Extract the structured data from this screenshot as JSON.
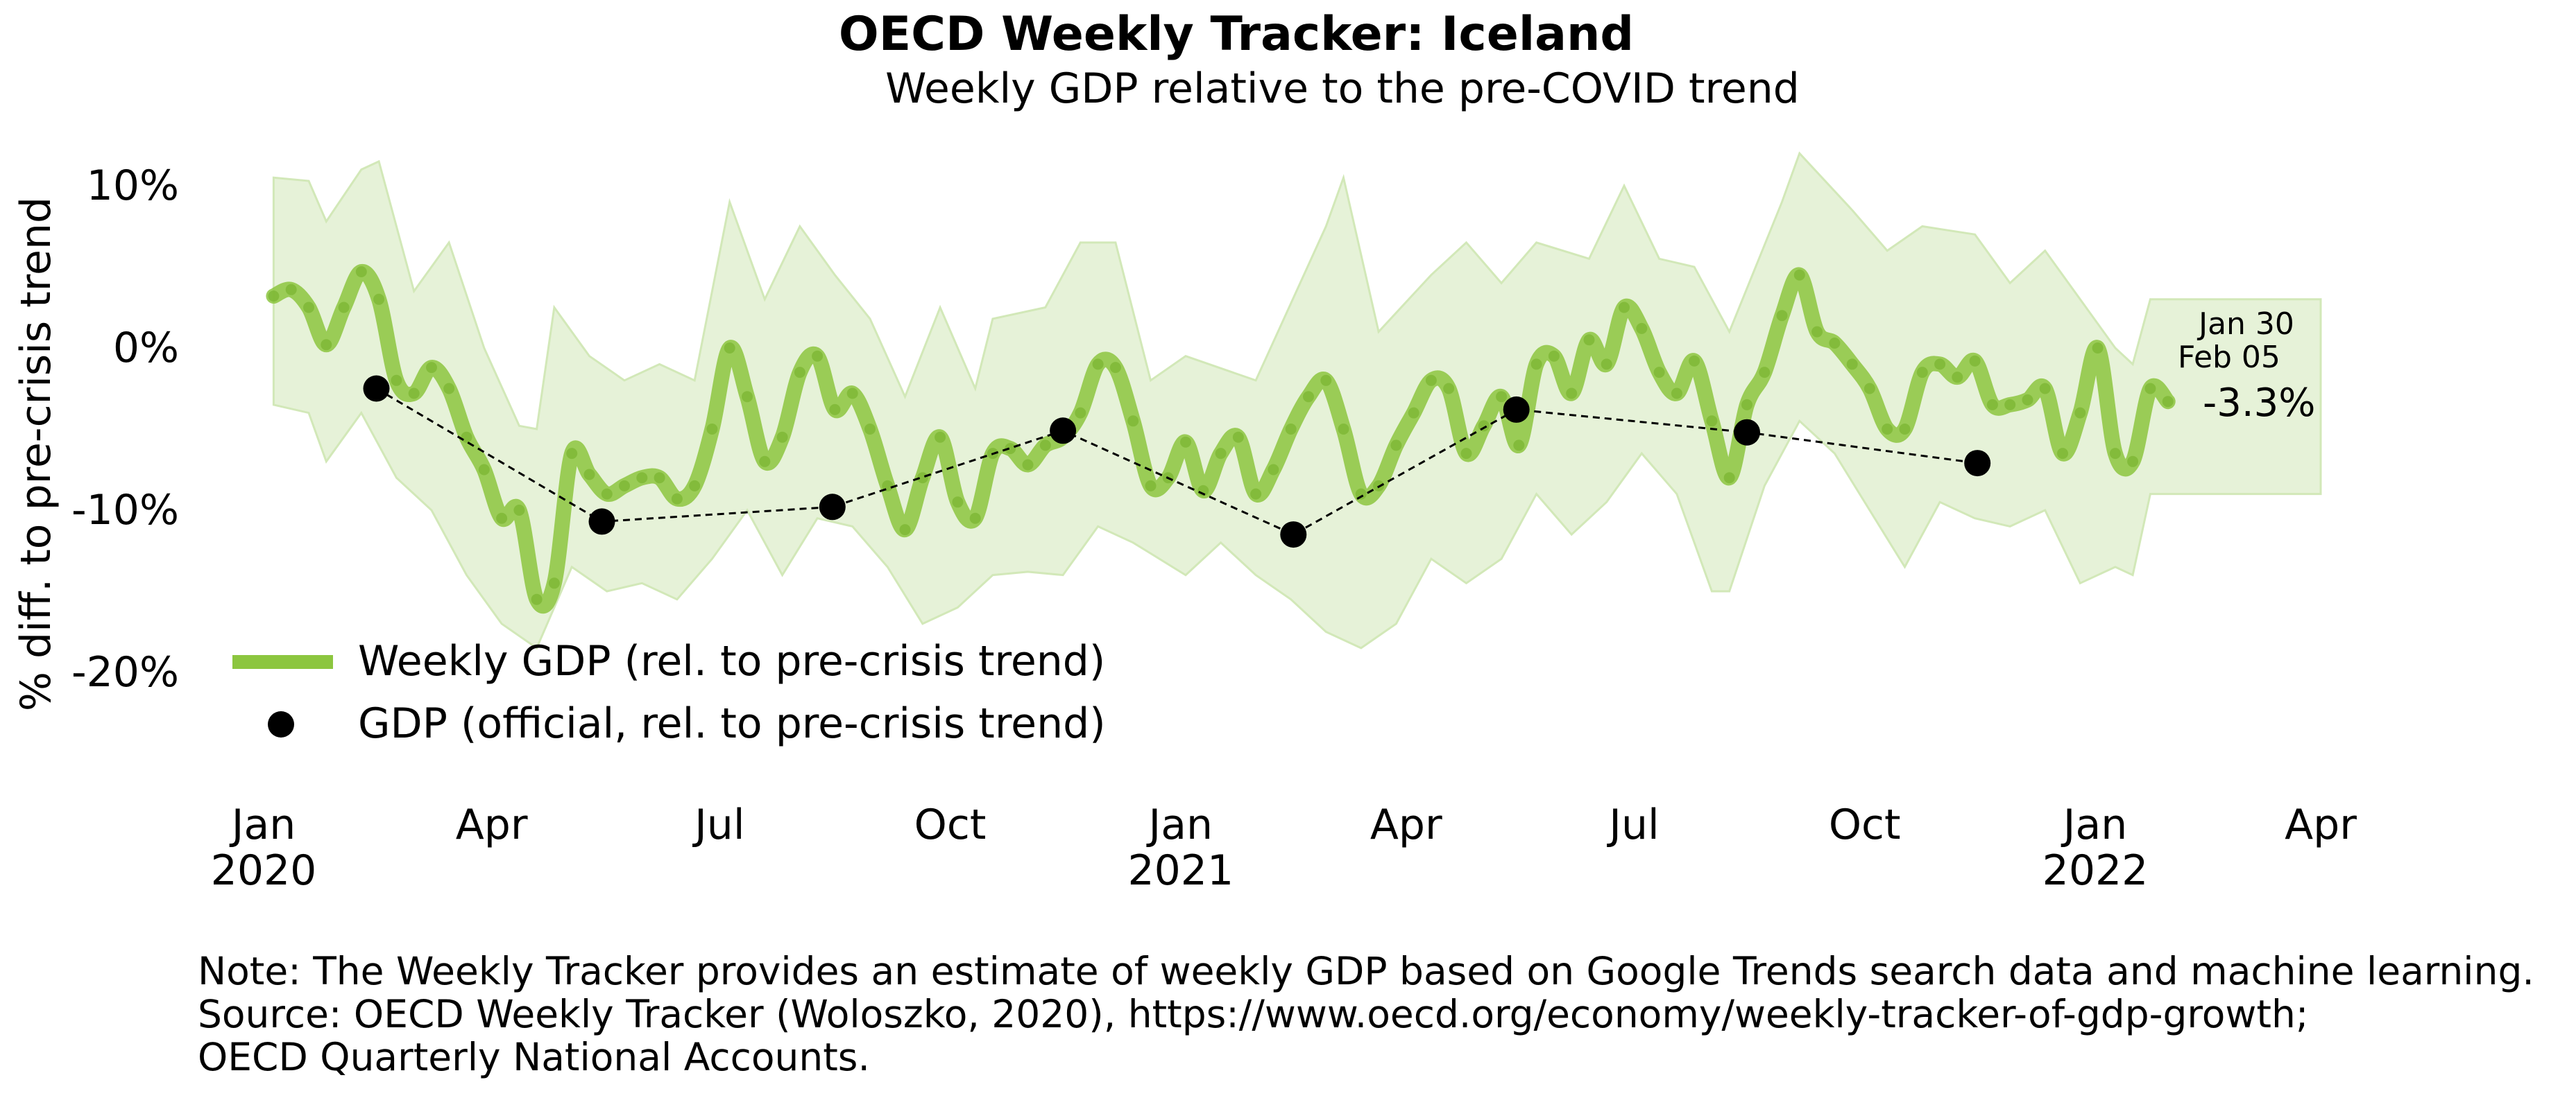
{
  "chart_data": {
    "type": "line",
    "title": "OECD Weekly Tracker: Iceland",
    "subtitle": "Weekly GDP relative to the pre-COVID trend",
    "ylabel": "% diff. to pre-crisis trend",
    "xlabel": "",
    "ylim": [
      -20,
      10
    ],
    "yticks": [
      10,
      0,
      -10,
      -20
    ],
    "ytick_labels": [
      "10%",
      "0%",
      "-10%",
      "-20%"
    ],
    "xticks": [
      {
        "date": "2020-01-01",
        "label": "Jan",
        "year": "2020"
      },
      {
        "date": "2020-04-01",
        "label": "Apr",
        "year": ""
      },
      {
        "date": "2020-07-01",
        "label": "Jul",
        "year": ""
      },
      {
        "date": "2020-10-01",
        "label": "Oct",
        "year": ""
      },
      {
        "date": "2021-01-01",
        "label": "Jan",
        "year": "2021"
      },
      {
        "date": "2021-04-01",
        "label": "Apr",
        "year": ""
      },
      {
        "date": "2021-07-01",
        "label": "Jul",
        "year": ""
      },
      {
        "date": "2021-10-01",
        "label": "Oct",
        "year": ""
      },
      {
        "date": "2022-01-01",
        "label": "Jan",
        "year": "2022"
      },
      {
        "date": "2022-04-01",
        "label": "Apr",
        "year": ""
      }
    ],
    "grid": false,
    "legend_position": "bottom-left",
    "colors": {
      "weekly": "#8cc63f",
      "band": "#e6f2d8",
      "band_edge": "#d2e8b8",
      "official": "#000000"
    },
    "series": [
      {
        "name": "Weekly GDP (rel. to pre-crisis trend)",
        "style": "line",
        "points": [
          [
            "2020-01-05",
            3.2
          ],
          [
            "2020-01-12",
            3.6
          ],
          [
            "2020-01-19",
            2.5
          ],
          [
            "2020-01-26",
            0.2
          ],
          [
            "2020-02-02",
            2.5
          ],
          [
            "2020-02-09",
            4.7
          ],
          [
            "2020-02-16",
            3.0
          ],
          [
            "2020-02-23",
            -2.0
          ],
          [
            "2020-03-01",
            -2.8
          ],
          [
            "2020-03-08",
            -1.2
          ],
          [
            "2020-03-15",
            -2.5
          ],
          [
            "2020-03-22",
            -5.5
          ],
          [
            "2020-03-29",
            -7.5
          ],
          [
            "2020-04-05",
            -10.5
          ],
          [
            "2020-04-12",
            -10.0
          ],
          [
            "2020-04-19",
            -15.5
          ],
          [
            "2020-04-26",
            -14.5
          ],
          [
            "2020-05-03",
            -6.5
          ],
          [
            "2020-05-10",
            -7.8
          ],
          [
            "2020-05-17",
            -9.0
          ],
          [
            "2020-05-24",
            -8.5
          ],
          [
            "2020-05-31",
            -8.0
          ],
          [
            "2020-06-07",
            -8.0
          ],
          [
            "2020-06-14",
            -9.3
          ],
          [
            "2020-06-21",
            -8.5
          ],
          [
            "2020-06-28",
            -5.0
          ],
          [
            "2020-07-05",
            0.0
          ],
          [
            "2020-07-12",
            -3.0
          ],
          [
            "2020-07-19",
            -7.0
          ],
          [
            "2020-07-26",
            -5.5
          ],
          [
            "2020-08-02",
            -1.5
          ],
          [
            "2020-08-09",
            -0.5
          ],
          [
            "2020-08-16",
            -3.8
          ],
          [
            "2020-08-23",
            -2.8
          ],
          [
            "2020-08-30",
            -5.0
          ],
          [
            "2020-09-06",
            -8.5
          ],
          [
            "2020-09-13",
            -11.2
          ],
          [
            "2020-09-20",
            -8.0
          ],
          [
            "2020-09-27",
            -5.5
          ],
          [
            "2020-10-04",
            -9.5
          ],
          [
            "2020-10-11",
            -10.5
          ],
          [
            "2020-10-18",
            -6.5
          ],
          [
            "2020-10-25",
            -6.2
          ],
          [
            "2020-11-01",
            -7.2
          ],
          [
            "2020-11-08",
            -6.0
          ],
          [
            "2020-11-15",
            -5.5
          ],
          [
            "2020-11-22",
            -4.0
          ],
          [
            "2020-11-29",
            -1.0
          ],
          [
            "2020-12-06",
            -1.2
          ],
          [
            "2020-12-13",
            -4.5
          ],
          [
            "2020-12-20",
            -8.5
          ],
          [
            "2020-12-27",
            -8.0
          ],
          [
            "2021-01-03",
            -5.8
          ],
          [
            "2021-01-10",
            -8.8
          ],
          [
            "2021-01-17",
            -6.5
          ],
          [
            "2021-01-24",
            -5.5
          ],
          [
            "2021-01-31",
            -9.0
          ],
          [
            "2021-02-07",
            -7.5
          ],
          [
            "2021-02-14",
            -5.0
          ],
          [
            "2021-02-21",
            -3.0
          ],
          [
            "2021-02-28",
            -2.0
          ],
          [
            "2021-03-07",
            -5.0
          ],
          [
            "2021-03-14",
            -9.0
          ],
          [
            "2021-03-21",
            -8.5
          ],
          [
            "2021-03-28",
            -6.0
          ],
          [
            "2021-04-04",
            -4.0
          ],
          [
            "2021-04-11",
            -2.0
          ],
          [
            "2021-04-18",
            -2.5
          ],
          [
            "2021-04-25",
            -6.5
          ],
          [
            "2021-05-02",
            -4.8
          ],
          [
            "2021-05-09",
            -3.0
          ],
          [
            "2021-05-16",
            -6.0
          ],
          [
            "2021-05-23",
            -1.0
          ],
          [
            "2021-05-30",
            -0.5
          ],
          [
            "2021-06-06",
            -2.8
          ],
          [
            "2021-06-13",
            0.5
          ],
          [
            "2021-06-20",
            -1.0
          ],
          [
            "2021-06-27",
            2.5
          ],
          [
            "2021-07-04",
            1.2
          ],
          [
            "2021-07-11",
            -1.5
          ],
          [
            "2021-07-18",
            -2.8
          ],
          [
            "2021-07-25",
            -0.8
          ],
          [
            "2021-08-01",
            -4.5
          ],
          [
            "2021-08-08",
            -8.0
          ],
          [
            "2021-08-15",
            -3.5
          ],
          [
            "2021-08-22",
            -1.5
          ],
          [
            "2021-08-29",
            2.0
          ],
          [
            "2021-09-05",
            4.5
          ],
          [
            "2021-09-12",
            1.0
          ],
          [
            "2021-09-19",
            0.3
          ],
          [
            "2021-09-26",
            -1.0
          ],
          [
            "2021-10-03",
            -2.5
          ],
          [
            "2021-10-10",
            -5.0
          ],
          [
            "2021-10-17",
            -5.0
          ],
          [
            "2021-10-24",
            -1.5
          ],
          [
            "2021-10-31",
            -1.0
          ],
          [
            "2021-11-07",
            -1.8
          ],
          [
            "2021-11-14",
            -0.8
          ],
          [
            "2021-11-21",
            -3.5
          ],
          [
            "2021-11-28",
            -3.5
          ],
          [
            "2021-12-05",
            -3.2
          ],
          [
            "2021-12-12",
            -2.5
          ],
          [
            "2021-12-19",
            -6.5
          ],
          [
            "2021-12-26",
            -4.0
          ],
          [
            "2022-01-02",
            0.0
          ],
          [
            "2022-01-09",
            -6.5
          ],
          [
            "2022-01-16",
            -7.0
          ],
          [
            "2022-01-23",
            -2.5
          ],
          [
            "2022-01-30",
            -3.3
          ]
        ]
      },
      {
        "name": "GDP (official, rel. to pre-crisis trend)",
        "style": "markers-dashed",
        "points": [
          [
            "2020-02-15",
            -2.5
          ],
          [
            "2020-05-15",
            -10.7
          ],
          [
            "2020-08-15",
            -9.8
          ],
          [
            "2020-11-15",
            -5.1
          ],
          [
            "2021-02-15",
            -11.5
          ],
          [
            "2021-05-15",
            -3.8
          ],
          [
            "2021-08-15",
            -5.2
          ],
          [
            "2021-11-15",
            -7.1
          ]
        ]
      }
    ],
    "band": {
      "upper": [
        [
          "2020-01-05",
          10.5
        ],
        [
          "2020-01-19",
          10.3
        ],
        [
          "2020-01-26",
          7.8
        ],
        [
          "2020-02-09",
          11.0
        ],
        [
          "2020-02-16",
          11.5
        ],
        [
          "2020-03-01",
          3.5
        ],
        [
          "2020-03-15",
          6.5
        ],
        [
          "2020-03-29",
          0.0
        ],
        [
          "2020-04-12",
          -4.8
        ],
        [
          "2020-04-19",
          -5.0
        ],
        [
          "2020-04-26",
          2.5
        ],
        [
          "2020-05-10",
          -0.5
        ],
        [
          "2020-05-24",
          -2.0
        ],
        [
          "2020-06-07",
          -1.0
        ],
        [
          "2020-06-21",
          -2.0
        ],
        [
          "2020-07-05",
          9.0
        ],
        [
          "2020-07-19",
          3.0
        ],
        [
          "2020-08-02",
          7.5
        ],
        [
          "2020-08-16",
          4.5
        ],
        [
          "2020-08-30",
          1.8
        ],
        [
          "2020-09-13",
          -3.0
        ],
        [
          "2020-09-27",
          2.5
        ],
        [
          "2020-10-11",
          -2.5
        ],
        [
          "2020-10-18",
          1.8
        ],
        [
          "2020-11-08",
          2.5
        ],
        [
          "2020-11-22",
          6.5
        ],
        [
          "2020-12-06",
          6.5
        ],
        [
          "2020-12-20",
          -2.0
        ],
        [
          "2021-01-03",
          -0.5
        ],
        [
          "2021-01-31",
          -2.0
        ],
        [
          "2021-02-28",
          7.5
        ],
        [
          "2021-03-07",
          10.5
        ],
        [
          "2021-03-21",
          1.0
        ],
        [
          "2021-04-11",
          4.5
        ],
        [
          "2021-04-25",
          6.5
        ],
        [
          "2021-05-09",
          4.0
        ],
        [
          "2021-05-23",
          6.5
        ],
        [
          "2021-06-13",
          5.5
        ],
        [
          "2021-06-27",
          10.0
        ],
        [
          "2021-07-11",
          5.5
        ],
        [
          "2021-07-25",
          5.0
        ],
        [
          "2021-08-08",
          1.0
        ],
        [
          "2021-08-29",
          9.0
        ],
        [
          "2021-09-05",
          12.0
        ],
        [
          "2021-09-26",
          8.5
        ],
        [
          "2021-10-10",
          6.0
        ],
        [
          "2021-10-24",
          7.5
        ],
        [
          "2021-11-14",
          7.0
        ],
        [
          "2021-11-28",
          4.0
        ],
        [
          "2021-12-12",
          6.0
        ],
        [
          "2021-12-26",
          3.0
        ],
        [
          "2022-01-09",
          0.0
        ],
        [
          "2022-01-16",
          -1.0
        ],
        [
          "2022-01-23",
          3.0
        ],
        [
          "2022-01-30",
          3.0
        ],
        [
          "2022-04-01",
          3.0
        ]
      ],
      "lower": [
        [
          "2020-01-05",
          -3.5
        ],
        [
          "2020-01-19",
          -4.0
        ],
        [
          "2020-01-26",
          -7.0
        ],
        [
          "2020-02-09",
          -4.0
        ],
        [
          "2020-02-23",
          -8.0
        ],
        [
          "2020-03-08",
          -10.0
        ],
        [
          "2020-03-22",
          -14.0
        ],
        [
          "2020-04-05",
          -17.0
        ],
        [
          "2020-04-19",
          -18.5
        ],
        [
          "2020-05-03",
          -13.5
        ],
        [
          "2020-05-17",
          -15.0
        ],
        [
          "2020-05-31",
          -14.5
        ],
        [
          "2020-06-14",
          -15.5
        ],
        [
          "2020-06-28",
          -13.0
        ],
        [
          "2020-07-12",
          -10.0
        ],
        [
          "2020-07-26",
          -14.0
        ],
        [
          "2020-08-09",
          -10.5
        ],
        [
          "2020-08-23",
          -11.0
        ],
        [
          "2020-09-06",
          -13.5
        ],
        [
          "2020-09-20",
          -17.0
        ],
        [
          "2020-10-04",
          -16.0
        ],
        [
          "2020-10-18",
          -14.0
        ],
        [
          "2020-11-01",
          -13.8
        ],
        [
          "2020-11-15",
          -14.0
        ],
        [
          "2020-11-29",
          -11.0
        ],
        [
          "2020-12-13",
          -12.0
        ],
        [
          "2021-01-03",
          -14.0
        ],
        [
          "2021-01-17",
          -12.0
        ],
        [
          "2021-01-31",
          -14.0
        ],
        [
          "2021-02-14",
          -15.5
        ],
        [
          "2021-02-28",
          -17.5
        ],
        [
          "2021-03-14",
          -18.5
        ],
        [
          "2021-03-28",
          -17.0
        ],
        [
          "2021-04-11",
          -13.0
        ],
        [
          "2021-04-25",
          -14.5
        ],
        [
          "2021-05-09",
          -13.0
        ],
        [
          "2021-05-23",
          -9.0
        ],
        [
          "2021-06-06",
          -11.5
        ],
        [
          "2021-06-20",
          -9.5
        ],
        [
          "2021-07-04",
          -6.5
        ],
        [
          "2021-07-18",
          -9.0
        ],
        [
          "2021-08-01",
          -15.0
        ],
        [
          "2021-08-08",
          -15.0
        ],
        [
          "2021-08-22",
          -8.5
        ],
        [
          "2021-09-05",
          -4.5
        ],
        [
          "2021-09-19",
          -6.5
        ],
        [
          "2021-10-03",
          -10.0
        ],
        [
          "2021-10-17",
          -13.5
        ],
        [
          "2021-10-31",
          -9.5
        ],
        [
          "2021-11-14",
          -10.5
        ],
        [
          "2021-11-28",
          -11.0
        ],
        [
          "2021-12-12",
          -10.0
        ],
        [
          "2021-12-26",
          -14.5
        ],
        [
          "2022-01-09",
          -13.5
        ],
        [
          "2022-01-16",
          -14.0
        ],
        [
          "2022-01-23",
          -9.0
        ],
        [
          "2022-01-30",
          -9.0
        ],
        [
          "2022-04-01",
          -9.0
        ]
      ]
    },
    "annotations": {
      "last_week_1": "Jan 30",
      "last_week_2": "Feb 05",
      "last_value": "-3.3%"
    }
  },
  "notes": {
    "line1": "Note: The Weekly Tracker provides an estimate of weekly GDP based on Google Trends search data and machine learning.",
    "line2": "Source: OECD Weekly Tracker (Woloszko, 2020), https://www.oecd.org/economy/weekly-tracker-of-gdp-growth;",
    "line3": "OECD Quarterly National Accounts."
  }
}
